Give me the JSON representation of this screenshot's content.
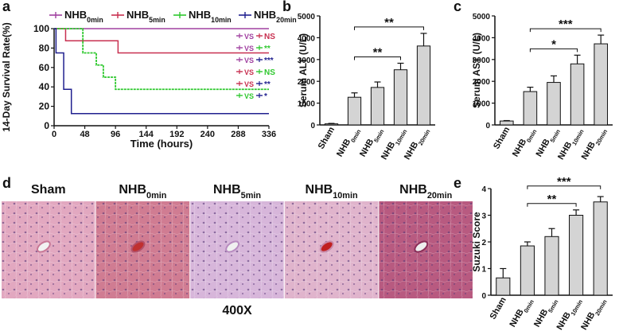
{
  "chart_data": [
    {
      "type": "line",
      "step": true,
      "panel": "a",
      "ylabel": "14-Day Survival Rate(%)",
      "xlabel": "Time (hours)",
      "xlim": [
        0,
        336
      ],
      "xticks": [
        0,
        48,
        96,
        144,
        192,
        240,
        288,
        336
      ],
      "ylim": [
        0,
        100
      ],
      "yticks": [
        0,
        20,
        40,
        60,
        80,
        100
      ],
      "series": [
        {
          "name": {
            "base": "NHB",
            "sub": "0min"
          },
          "color": "#a040a0",
          "x": [
            0,
            336
          ],
          "values": [
            100,
            100
          ]
        },
        {
          "name": {
            "base": "NHB",
            "sub": "5min"
          },
          "color": "#c83050",
          "x": [
            0,
            18,
            100,
            336
          ],
          "values": [
            100,
            87.5,
            75,
            75
          ]
        },
        {
          "name": {
            "base": "NHB",
            "sub": "10min"
          },
          "color": "#2ec82e",
          "x": [
            0,
            45,
            66,
            77,
            96,
            336
          ],
          "values": [
            100,
            75,
            62.5,
            50,
            37.5,
            37.5
          ]
        },
        {
          "name": {
            "base": "NHB",
            "sub": "20min"
          },
          "color": "#20208f",
          "x": [
            0,
            3,
            15,
            27,
            336
          ],
          "values": [
            100,
            75,
            37.5,
            12.5,
            12.5
          ]
        }
      ],
      "comparison_word": "VS",
      "comparisons": [
        {
          "a": "#a040a0",
          "b": "#c83050",
          "label": "NS"
        },
        {
          "a": "#a040a0",
          "b": "#2ec82e",
          "label": "**"
        },
        {
          "a": "#a040a0",
          "b": "#20208f",
          "label": "***"
        },
        {
          "a": "#c83050",
          "b": "#2ec82e",
          "label": "NS"
        },
        {
          "a": "#c83050",
          "b": "#20208f",
          "label": "**"
        },
        {
          "a": "#2ec82e",
          "b": "#20208f",
          "label": "*"
        }
      ]
    },
    {
      "type": "bar",
      "panel": "b",
      "ylabel": "Serum  ALT (U/L)",
      "color": "#d4d4d4",
      "categories": [
        {
          "base": "Sham"
        },
        {
          "base": "NHB",
          "sub": "0min"
        },
        {
          "base": "NHB",
          "sub": "5min"
        },
        {
          "base": "NHB",
          "sub": "10min"
        },
        {
          "base": "NHB",
          "sub": "20min"
        }
      ],
      "values": [
        50,
        1270,
        1720,
        2530,
        3620
      ],
      "errors": [
        20,
        200,
        250,
        300,
        580
      ],
      "ylim": [
        0,
        5000
      ],
      "yticks": [
        0,
        1000,
        2000,
        3000,
        4000,
        5000
      ],
      "comparisons": [
        {
          "from": 1,
          "to": 3,
          "label": "**"
        },
        {
          "from": 1,
          "to": 4,
          "label": "**"
        }
      ]
    },
    {
      "type": "bar",
      "panel": "c",
      "ylabel": "Serum  AST (U/L)",
      "color": "#d4d4d4",
      "categories": [
        {
          "base": "Sham"
        },
        {
          "base": "NHB",
          "sub": "0min"
        },
        {
          "base": "NHB",
          "sub": "5min"
        },
        {
          "base": "NHB",
          "sub": "10min"
        },
        {
          "base": "NHB",
          "sub": "20min"
        }
      ],
      "values": [
        180,
        1530,
        1950,
        2800,
        3720
      ],
      "errors": [
        20,
        200,
        300,
        400,
        400
      ],
      "ylim": [
        0,
        5000
      ],
      "yticks": [
        0,
        1000,
        2000,
        3000,
        4000,
        5000
      ],
      "comparisons": [
        {
          "from": 1,
          "to": 3,
          "label": "*"
        },
        {
          "from": 1,
          "to": 4,
          "label": "***"
        }
      ]
    },
    {
      "type": "bar",
      "panel": "e",
      "ylabel": "Suzuki Score",
      "color": "#d4d4d4",
      "categories": [
        {
          "base": "Sham"
        },
        {
          "base": "NHB",
          "sub": "0min"
        },
        {
          "base": "NHB",
          "sub": "5min"
        },
        {
          "base": "NHB",
          "sub": "10min"
        },
        {
          "base": "NHB",
          "sub": "20min"
        }
      ],
      "values": [
        0.65,
        1.85,
        2.2,
        3.0,
        3.5
      ],
      "errors": [
        0.35,
        0.15,
        0.3,
        0.2,
        0.2
      ],
      "ylim": [
        0,
        4
      ],
      "yticks": [
        0,
        1,
        2,
        3,
        4
      ],
      "comparisons": [
        {
          "from": 1,
          "to": 3,
          "label": "**"
        },
        {
          "from": 1,
          "to": 4,
          "label": "***"
        }
      ]
    }
  ],
  "histology": {
    "panel": "d",
    "magnification": "400X",
    "labels": [
      {
        "base": "Sham"
      },
      {
        "base": "NHB",
        "sub": "0min"
      },
      {
        "base": "NHB",
        "sub": "5min"
      },
      {
        "base": "NHB",
        "sub": "10min"
      },
      {
        "base": "NHB",
        "sub": "20min"
      }
    ]
  }
}
